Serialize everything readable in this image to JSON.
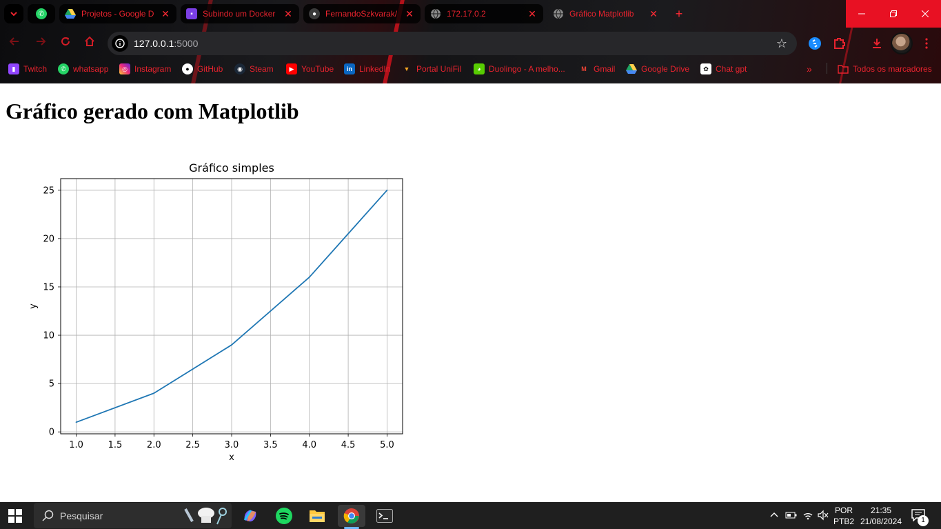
{
  "browser": {
    "tabs": [
      {
        "title": "",
        "icon": "whatsapp-icon"
      },
      {
        "title": "Projetos - Google D",
        "icon": "google-drive-icon"
      },
      {
        "title": "Subindo um Docker",
        "icon": "contact-icon"
      },
      {
        "title": "FernandoSzkvarak/",
        "icon": "github-icon"
      },
      {
        "title": "172.17.0.2",
        "icon": "globe-icon"
      },
      {
        "title": "Gráfico Matplotlib",
        "icon": "globe-icon"
      }
    ],
    "close_glyph": "✕",
    "new_tab_glyph": "+",
    "url_host": "127.0.0.1",
    "url_port": ":5000",
    "bookmarks": [
      {
        "label": "Twitch",
        "icon": "twitch-icon",
        "color": "#9146ff"
      },
      {
        "label": "whatsapp",
        "icon": "whatsapp-icon",
        "color": "#25d366"
      },
      {
        "label": "Instagram",
        "icon": "instagram-icon",
        "color": "#d6249f"
      },
      {
        "label": "GitHub",
        "icon": "github-icon",
        "color": "#ffffff"
      },
      {
        "label": "Steam",
        "icon": "steam-icon",
        "color": "#1b2838"
      },
      {
        "label": "YouTube",
        "icon": "youtube-icon",
        "color": "#ff0000"
      },
      {
        "label": "LinkedIn",
        "icon": "linkedin-icon",
        "color": "#0a66c2"
      },
      {
        "label": "Portal UniFil",
        "icon": "unifil-icon",
        "color": "#f5a623"
      },
      {
        "label": "Duolingo - A melho...",
        "icon": "duolingo-icon",
        "color": "#58cc02"
      },
      {
        "label": "Gmail",
        "icon": "gmail-icon",
        "color": "#ea4335"
      },
      {
        "label": "Google Drive",
        "icon": "google-drive-icon",
        "color": "#34a853"
      },
      {
        "label": "Chat gpt",
        "icon": "chatgpt-icon",
        "color": "#ffffff"
      }
    ],
    "bookmarks_overflow": "»",
    "all_bookmarks": "Todos os marcadores",
    "accent_color": "#e8232e"
  },
  "page": {
    "heading": "Gráfico gerado com Matplotlib"
  },
  "chart_data": {
    "type": "line",
    "title": "Gráfico simples",
    "xlabel": "x",
    "ylabel": "y",
    "x": [
      1,
      2,
      3,
      4,
      5
    ],
    "series": [
      {
        "values": [
          1,
          4,
          9,
          16,
          25
        ],
        "color": "#1f77b4"
      }
    ],
    "xlim": [
      0.8,
      5.2
    ],
    "ylim": [
      -0.2,
      26.2
    ],
    "xticks": [
      "1.0",
      "1.5",
      "2.0",
      "2.5",
      "3.0",
      "3.5",
      "4.0",
      "4.5",
      "5.0"
    ],
    "yticks": [
      "0",
      "5",
      "10",
      "15",
      "20",
      "25"
    ],
    "grid": true
  },
  "taskbar": {
    "search_label": "Pesquisar",
    "language_top": "POR",
    "language_bottom": "PTB2",
    "time": "21:35",
    "date": "21/08/2024",
    "notification_count": "1"
  }
}
